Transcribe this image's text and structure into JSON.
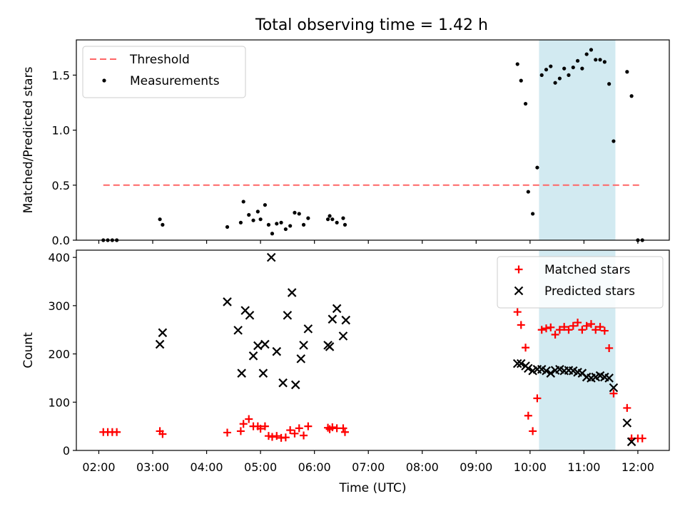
{
  "figure": {
    "title": "Total observing time = 1.42 h"
  },
  "chart_data": [
    {
      "type": "scatter",
      "ylabel": "Matched/Predicted stars",
      "xlim": [
        "01:35",
        "12:35"
      ],
      "ylim": [
        0,
        1.82
      ],
      "yticks": [
        "0.0",
        "0.5",
        "1.0",
        "1.5"
      ],
      "ytick_values": [
        0,
        0.5,
        1.0,
        1.5
      ],
      "legend_position": "upper left",
      "shaded_interval": {
        "start": "10:10",
        "end": "11:35",
        "color": "#add8e6"
      },
      "threshold": {
        "name": "Threshold",
        "value": 0.5,
        "x_start": "02:05",
        "x_end": "12:05",
        "color": "#ff6666"
      },
      "series": [
        {
          "name": "Measurements",
          "color": "#000000",
          "marker": "dot",
          "points": [
            [
              "02:05",
              0.0
            ],
            [
              "02:10",
              0.0
            ],
            [
              "02:15",
              0.0
            ],
            [
              "02:20",
              0.0
            ],
            [
              "03:08",
              0.19
            ],
            [
              "03:11",
              0.14
            ],
            [
              "04:23",
              0.12
            ],
            [
              "04:38",
              0.16
            ],
            [
              "04:41",
              0.35
            ],
            [
              "04:47",
              0.23
            ],
            [
              "04:52",
              0.18
            ],
            [
              "04:57",
              0.26
            ],
            [
              "05:00",
              0.19
            ],
            [
              "05:05",
              0.32
            ],
            [
              "05:09",
              0.14
            ],
            [
              "05:13",
              0.06
            ],
            [
              "05:18",
              0.15
            ],
            [
              "05:23",
              0.16
            ],
            [
              "05:28",
              0.1
            ],
            [
              "05:33",
              0.13
            ],
            [
              "05:38",
              0.25
            ],
            [
              "05:43",
              0.24
            ],
            [
              "05:48",
              0.14
            ],
            [
              "05:53",
              0.2
            ],
            [
              "06:15",
              0.19
            ],
            [
              "06:17",
              0.22
            ],
            [
              "06:20",
              0.19
            ],
            [
              "06:25",
              0.16
            ],
            [
              "06:32",
              0.2
            ],
            [
              "06:34",
              0.14
            ],
            [
              "09:46",
              1.6
            ],
            [
              "09:50",
              1.45
            ],
            [
              "09:55",
              1.24
            ],
            [
              "09:58",
              0.44
            ],
            [
              "10:03",
              0.24
            ],
            [
              "10:08",
              0.66
            ],
            [
              "10:13",
              1.5
            ],
            [
              "10:18",
              1.55
            ],
            [
              "10:23",
              1.58
            ],
            [
              "10:28",
              1.43
            ],
            [
              "10:33",
              1.47
            ],
            [
              "10:38",
              1.56
            ],
            [
              "10:43",
              1.5
            ],
            [
              "10:48",
              1.57
            ],
            [
              "10:53",
              1.63
            ],
            [
              "10:58",
              1.56
            ],
            [
              "11:03",
              1.69
            ],
            [
              "11:08",
              1.73
            ],
            [
              "11:13",
              1.64
            ],
            [
              "11:18",
              1.64
            ],
            [
              "11:23",
              1.62
            ],
            [
              "11:28",
              1.42
            ],
            [
              "11:33",
              0.9
            ],
            [
              "11:48",
              1.53
            ],
            [
              "11:53",
              1.31
            ],
            [
              "12:00",
              0.0
            ],
            [
              "12:05",
              0.0
            ]
          ]
        }
      ]
    },
    {
      "type": "scatter",
      "xlabel": "Time (UTC)",
      "ylabel": "Count",
      "xlim": [
        "01:35",
        "12:35"
      ],
      "ylim": [
        0,
        415
      ],
      "yticks": [
        "0",
        "100",
        "200",
        "300",
        "400"
      ],
      "ytick_values": [
        0,
        100,
        200,
        300,
        400
      ],
      "xticks": [
        "02:00",
        "03:00",
        "04:00",
        "05:00",
        "06:00",
        "07:00",
        "08:00",
        "09:00",
        "10:00",
        "11:00",
        "12:00"
      ],
      "legend_position": "upper right",
      "shaded_interval": {
        "start": "10:10",
        "end": "11:35",
        "color": "#add8e6"
      },
      "series": [
        {
          "name": "Matched stars",
          "color": "#ff0000",
          "marker": "plus",
          "points": [
            [
              "02:05",
              38
            ],
            [
              "02:10",
              38
            ],
            [
              "02:15",
              38
            ],
            [
              "02:20",
              38
            ],
            [
              "03:08",
              40
            ],
            [
              "03:11",
              34
            ],
            [
              "04:23",
              37
            ],
            [
              "04:38",
              40
            ],
            [
              "04:41",
              55
            ],
            [
              "04:47",
              65
            ],
            [
              "04:52",
              50
            ],
            [
              "04:57",
              50
            ],
            [
              "05:00",
              45
            ],
            [
              "05:05",
              50
            ],
            [
              "05:09",
              30
            ],
            [
              "05:13",
              28
            ],
            [
              "05:18",
              30
            ],
            [
              "05:23",
              26
            ],
            [
              "05:28",
              27
            ],
            [
              "05:33",
              42
            ],
            [
              "05:38",
              35
            ],
            [
              "05:43",
              46
            ],
            [
              "05:48",
              31
            ],
            [
              "05:53",
              50
            ],
            [
              "06:15",
              47
            ],
            [
              "06:17",
              44
            ],
            [
              "06:20",
              48
            ],
            [
              "06:25",
              46
            ],
            [
              "06:32",
              46
            ],
            [
              "06:34",
              38
            ],
            [
              "09:46",
              287
            ],
            [
              "09:50",
              260
            ],
            [
              "09:55",
              213
            ],
            [
              "09:58",
              72
            ],
            [
              "10:03",
              40
            ],
            [
              "10:08",
              108
            ],
            [
              "10:13",
              250
            ],
            [
              "10:18",
              253
            ],
            [
              "10:23",
              255
            ],
            [
              "10:28",
              240
            ],
            [
              "10:33",
              250
            ],
            [
              "10:38",
              256
            ],
            [
              "10:43",
              250
            ],
            [
              "10:48",
              258
            ],
            [
              "10:53",
              265
            ],
            [
              "10:58",
              250
            ],
            [
              "11:03",
              258
            ],
            [
              "11:08",
              262
            ],
            [
              "11:13",
              250
            ],
            [
              "11:18",
              256
            ],
            [
              "11:23",
              248
            ],
            [
              "11:28",
              212
            ],
            [
              "11:33",
              118
            ],
            [
              "11:48",
              88
            ],
            [
              "11:53",
              25
            ],
            [
              "12:00",
              25
            ],
            [
              "12:05",
              25
            ]
          ]
        },
        {
          "name": "Predicted stars",
          "color": "#000000",
          "marker": "x",
          "points": [
            [
              "03:08",
              220
            ],
            [
              "03:11",
              244
            ],
            [
              "04:23",
              308
            ],
            [
              "04:35",
              249
            ],
            [
              "04:39",
              160
            ],
            [
              "04:43",
              290
            ],
            [
              "04:48",
              280
            ],
            [
              "04:52",
              196
            ],
            [
              "04:57",
              217
            ],
            [
              "05:03",
              160
            ],
            [
              "05:05",
              220
            ],
            [
              "05:12",
              400
            ],
            [
              "05:18",
              205
            ],
            [
              "05:25",
              140
            ],
            [
              "05:30",
              280
            ],
            [
              "05:35",
              327
            ],
            [
              "05:39",
              136
            ],
            [
              "05:45",
              190
            ],
            [
              "05:48",
              218
            ],
            [
              "05:53",
              252
            ],
            [
              "06:15",
              218
            ],
            [
              "06:17",
              215
            ],
            [
              "06:20",
              272
            ],
            [
              "06:25",
              294
            ],
            [
              "06:32",
              237
            ],
            [
              "06:35",
              270
            ],
            [
              "09:46",
              180
            ],
            [
              "09:50",
              180
            ],
            [
              "09:55",
              175
            ],
            [
              "09:58",
              170
            ],
            [
              "10:03",
              165
            ],
            [
              "10:08",
              168
            ],
            [
              "10:13",
              168
            ],
            [
              "10:18",
              165
            ],
            [
              "10:23",
              160
            ],
            [
              "10:28",
              166
            ],
            [
              "10:33",
              168
            ],
            [
              "10:38",
              165
            ],
            [
              "10:43",
              166
            ],
            [
              "10:48",
              165
            ],
            [
              "10:53",
              162
            ],
            [
              "10:58",
              160
            ],
            [
              "11:03",
              152
            ],
            [
              "11:08",
              150
            ],
            [
              "11:13",
              152
            ],
            [
              "11:18",
              155
            ],
            [
              "11:23",
              152
            ],
            [
              "11:28",
              150
            ],
            [
              "11:33",
              130
            ],
            [
              "11:48",
              57
            ],
            [
              "11:53",
              18
            ]
          ]
        }
      ]
    }
  ]
}
